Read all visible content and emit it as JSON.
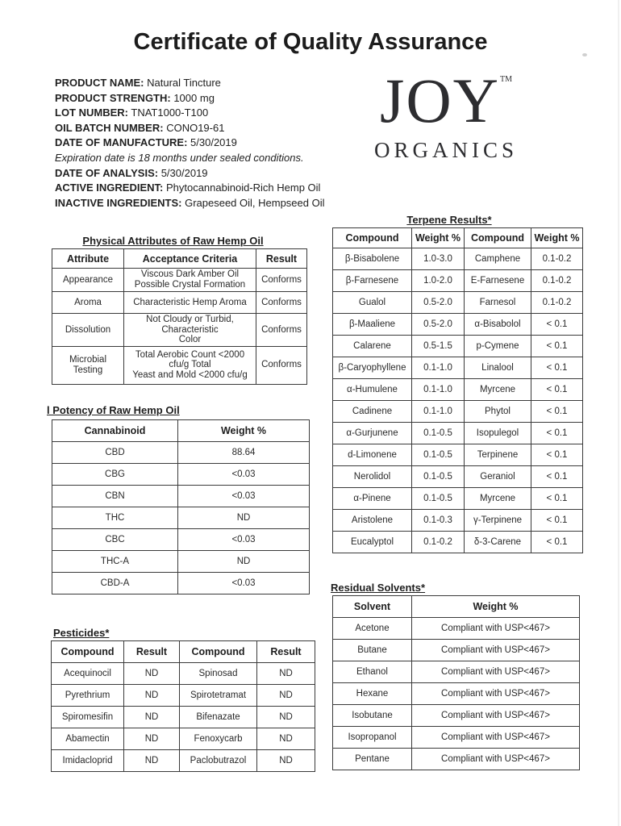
{
  "title": "Certificate of Quality Assurance",
  "logo": {
    "name": "JOY",
    "tm": "TM",
    "sub": "ORGANICS"
  },
  "product_info": {
    "lines": [
      {
        "label": "PRODUCT NAME:",
        "value": "Natural Tincture"
      },
      {
        "label": "PRODUCT STRENGTH:",
        "value": "1000 mg"
      },
      {
        "label": "LOT NUMBER:",
        "value": "TNAT1000-T100"
      },
      {
        "label": "OIL BATCH NUMBER:",
        "value": "CONO19-61"
      },
      {
        "label": "DATE OF MANUFACTURE:",
        "value": "5/30/2019"
      },
      {
        "italic": "Expiration date is 18 months under sealed conditions."
      },
      {
        "label": "DATE OF ANALYSIS:",
        "value": "5/30/2019"
      },
      {
        "label": "ACTIVE INGREDIENT:",
        "value": "Phytocannabinoid-Rich Hemp Oil"
      },
      {
        "label": "INACTIVE INGREDIENTS:",
        "value": "Grapeseed Oil, Hempseed Oil"
      }
    ]
  },
  "physical_table": {
    "title": "Physical Attributes of Raw Hemp Oil",
    "headers": [
      "Attribute",
      "Acceptance Criteria",
      "Result"
    ],
    "rows": [
      [
        "Appearance",
        "Viscous Dark Amber Oil\nPossible Crystal Formation",
        "Conforms"
      ],
      [
        "Aroma",
        "Characteristic Hemp Aroma",
        "Conforms"
      ],
      [
        "Dissolution",
        "Not Cloudy or Turbid, Characteristic\nColor",
        "Conforms"
      ],
      [
        "Microbial Testing",
        "Total Aerobic Count <2000 cfu/g Total\nYeast and Mold <2000 cfu/g",
        "Conforms"
      ]
    ]
  },
  "potency_table": {
    "title": "l Potency of Raw Hemp Oil",
    "headers": [
      "Cannabinoid",
      "Weight %"
    ],
    "rows": [
      [
        "CBD",
        "88.64"
      ],
      [
        "CBG",
        "<0.03"
      ],
      [
        "CBN",
        "<0.03"
      ],
      [
        "THC",
        "ND"
      ],
      [
        "CBC",
        "<0.03"
      ],
      [
        "THC-A",
        "ND"
      ],
      [
        "CBD-A",
        "<0.03"
      ]
    ]
  },
  "pesticides_table": {
    "title": "Pesticides*",
    "headers": [
      "Compound",
      "Result",
      "Compound",
      "Result"
    ],
    "rows": [
      [
        "Acequinocil",
        "ND",
        "Spinosad",
        "ND"
      ],
      [
        "Pyrethrium",
        "ND",
        "Spirotetramat",
        "ND"
      ],
      [
        "Spiromesifin",
        "ND",
        "Bifenazate",
        "ND"
      ],
      [
        "Abamectin",
        "ND",
        "Fenoxycarb",
        "ND"
      ],
      [
        "Imidacloprid",
        "ND",
        "Paclobutrazol",
        "ND"
      ]
    ]
  },
  "terpene_table": {
    "title": "Terpene Results*",
    "headers": [
      "Compound",
      "Weight %",
      "Compound",
      "Weight %"
    ],
    "rows": [
      [
        "β-Bisabolene",
        "1.0-3.0",
        "Camphene",
        "0.1-0.2"
      ],
      [
        "β-Farnesene",
        "1.0-2.0",
        "E-Farnesene",
        "0.1-0.2"
      ],
      [
        "Gualol",
        "0.5-2.0",
        "Farnesol",
        "0.1-0.2"
      ],
      [
        "β-Maaliene",
        "0.5-2.0",
        "α-Bisabolol",
        "< 0.1"
      ],
      [
        "Calarene",
        "0.5-1.5",
        "p-Cymene",
        "< 0.1"
      ],
      [
        "β-Caryophyllene",
        "0.1-1.0",
        "Linalool",
        "< 0.1"
      ],
      [
        "α-Humulene",
        "0.1-1.0",
        "Myrcene",
        "< 0.1"
      ],
      [
        "Cadinene",
        "0.1-1.0",
        "Phytol",
        "< 0.1"
      ],
      [
        "α-Gurjunene",
        "0.1-0.5",
        "Isopulegol",
        "< 0.1"
      ],
      [
        "d-Limonene",
        "0.1-0.5",
        "Terpinene",
        "< 0.1"
      ],
      [
        "Nerolidol",
        "0.1-0.5",
        "Geraniol",
        "< 0.1"
      ],
      [
        "α-Pinene",
        "0.1-0.5",
        "Myrcene",
        "< 0.1"
      ],
      [
        "Aristolene",
        "0.1-0.3",
        "γ-Terpinene",
        "< 0.1"
      ],
      [
        "Eucalyptol",
        "0.1-0.2",
        "δ-3-Carene",
        "< 0.1"
      ]
    ]
  },
  "residual_table": {
    "title": "Residual Solvents*",
    "headers": [
      "Solvent",
      "Weight %"
    ],
    "rows": [
      [
        "Acetone",
        "Compliant with USP<467>"
      ],
      [
        "Butane",
        "Compliant with USP<467>"
      ],
      [
        "Ethanol",
        "Compliant with USP<467>"
      ],
      [
        "Hexane",
        "Compliant with USP<467>"
      ],
      [
        "Isobutane",
        "Compliant with USP<467>"
      ],
      [
        "Isopropanol",
        "Compliant with USP<467>"
      ],
      [
        "Pentane",
        "Compliant with USP<467>"
      ]
    ]
  }
}
